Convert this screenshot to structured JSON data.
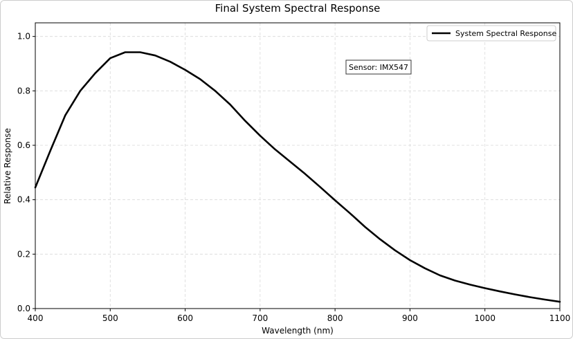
{
  "chart_data": {
    "type": "line",
    "title": "Final System Spectral Response",
    "xlabel": "Wavelength (nm)",
    "ylabel": "Relative Response",
    "xlim": [
      400,
      1100
    ],
    "ylim": [
      0.0,
      1.05
    ],
    "xticks": [
      400,
      500,
      600,
      700,
      800,
      900,
      1000,
      1100
    ],
    "yticks": [
      0.0,
      0.2,
      0.4,
      0.6,
      0.8,
      1.0
    ],
    "xtick_labels": [
      "400",
      "500",
      "600",
      "700",
      "800",
      "900",
      "1000",
      "1100"
    ],
    "ytick_labels": [
      "0.0",
      "0.2",
      "0.4",
      "0.6",
      "0.8",
      "1.0"
    ],
    "grid": true,
    "legend_position": "top-right",
    "annotation": "Sensor: IMX547",
    "series": [
      {
        "name": "System Spectral Response",
        "color": "#000000",
        "x": [
          400,
          420,
          440,
          460,
          480,
          500,
          520,
          540,
          560,
          580,
          600,
          620,
          640,
          660,
          680,
          700,
          720,
          740,
          760,
          780,
          800,
          820,
          840,
          860,
          880,
          900,
          920,
          940,
          960,
          980,
          1000,
          1020,
          1040,
          1060,
          1080,
          1100
        ],
        "y": [
          0.445,
          0.58,
          0.71,
          0.8,
          0.865,
          0.92,
          0.942,
          0.942,
          0.93,
          0.907,
          0.877,
          0.843,
          0.8,
          0.75,
          0.69,
          0.635,
          0.585,
          0.54,
          0.495,
          0.447,
          0.398,
          0.35,
          0.3,
          0.255,
          0.214,
          0.178,
          0.148,
          0.122,
          0.103,
          0.088,
          0.075,
          0.063,
          0.052,
          0.042,
          0.033,
          0.025
        ]
      }
    ]
  }
}
